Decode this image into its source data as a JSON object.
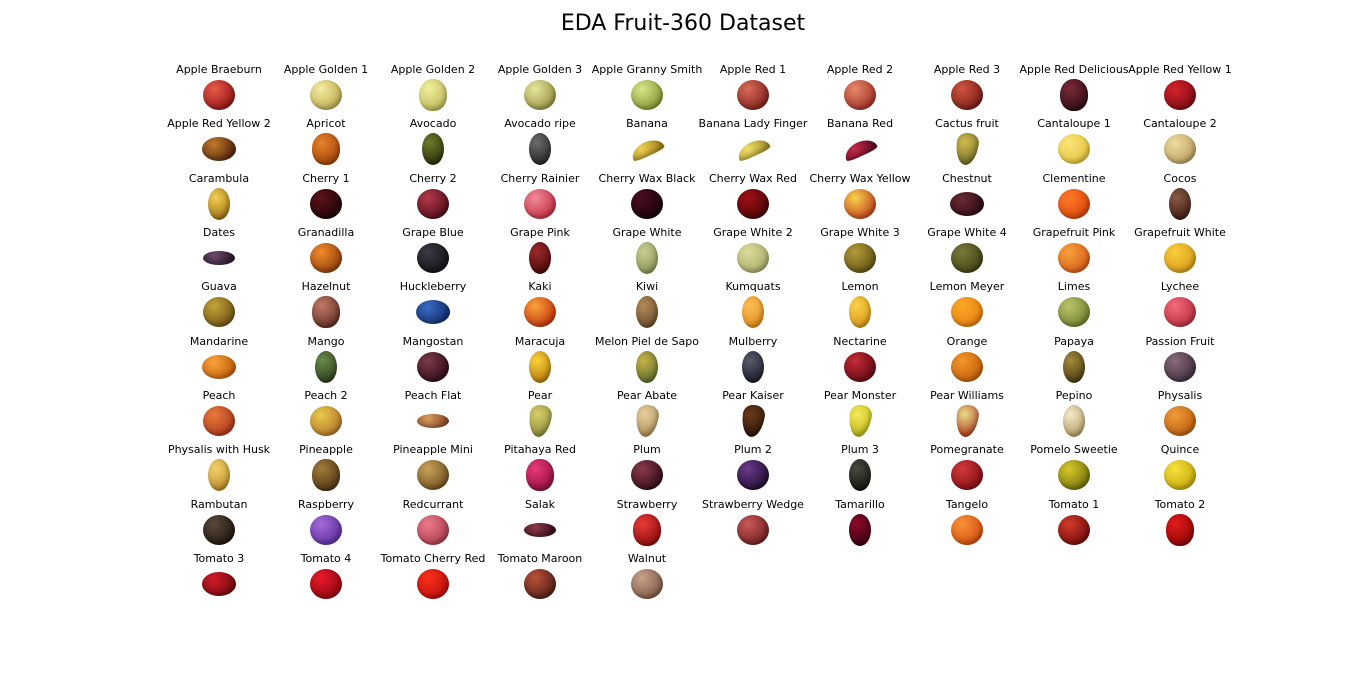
{
  "title": "EDA Fruit-360 Dataset",
  "fruits": [
    {
      "name": "Apple Braeburn",
      "colors": [
        "#e85a4a",
        "#8a1010"
      ],
      "shape": "round"
    },
    {
      "name": "Apple Golden 1",
      "colors": [
        "#f3eca0",
        "#b9a44c"
      ],
      "shape": "round"
    },
    {
      "name": "Apple Golden 2",
      "colors": [
        "#f1ef9a",
        "#b8b557"
      ],
      "shape": "tall"
    },
    {
      "name": "Apple Golden 3",
      "colors": [
        "#e7e59a",
        "#8f8e3c"
      ],
      "shape": "round"
    },
    {
      "name": "Apple Granny Smith",
      "colors": [
        "#d8e58a",
        "#7c8f2a"
      ],
      "shape": "round"
    },
    {
      "name": "Apple Red 1",
      "colors": [
        "#d96a58",
        "#7a1c18"
      ],
      "shape": "round"
    },
    {
      "name": "Apple Red 2",
      "colors": [
        "#e4886b",
        "#9c2a20"
      ],
      "shape": "round"
    },
    {
      "name": "Apple Red 3",
      "colors": [
        "#d25540",
        "#6e1713"
      ],
      "shape": "round"
    },
    {
      "name": "Apple Red Delicious",
      "colors": [
        "#7a2a36",
        "#2a0c14"
      ],
      "shape": "tall"
    },
    {
      "name": "Apple Red Yellow 1",
      "colors": [
        "#d4222a",
        "#760b10"
      ],
      "shape": "round"
    },
    {
      "name": "Apple Red Yellow 2",
      "colors": [
        "#c07a2a",
        "#4d1e0a"
      ],
      "shape": "wide"
    },
    {
      "name": "Apricot",
      "colors": [
        "#e6822a",
        "#9c3f08"
      ],
      "shape": "tall"
    },
    {
      "name": "Avocado",
      "colors": [
        "#6f7a2a",
        "#2b2e0a"
      ],
      "shape": "oval"
    },
    {
      "name": "Avocado ripe",
      "colors": [
        "#6a6a66",
        "#26262a"
      ],
      "shape": "oval"
    },
    {
      "name": "Banana",
      "colors": [
        "#eed054",
        "#a08214"
      ],
      "shape": "banana"
    },
    {
      "name": "Banana Lady Finger",
      "colors": [
        "#f1df6a",
        "#a6922a"
      ],
      "shape": "banana"
    },
    {
      "name": "Banana Red",
      "colors": [
        "#c42a4a",
        "#5e0a20"
      ],
      "shape": "banana"
    },
    {
      "name": "Cactus fruit",
      "colors": [
        "#d2bb52",
        "#6c6a22"
      ],
      "shape": "pear"
    },
    {
      "name": "Cantaloupe 1",
      "colors": [
        "#fbe67a",
        "#e1bf3a"
      ],
      "shape": "round"
    },
    {
      "name": "Cantaloupe 2",
      "colors": [
        "#efdca0",
        "#b59a5a"
      ],
      "shape": "round"
    },
    {
      "name": "Carambula",
      "colors": [
        "#f2cf52",
        "#9c6e14"
      ],
      "shape": "oval"
    },
    {
      "name": "Cherry 1",
      "colors": [
        "#5a1218",
        "#1a0406"
      ],
      "shape": "round"
    },
    {
      "name": "Cherry 2",
      "colors": [
        "#b2384a",
        "#4a0a16"
      ],
      "shape": "round"
    },
    {
      "name": "Cherry Rainier",
      "colors": [
        "#f08a9a",
        "#c0283c"
      ],
      "shape": "round"
    },
    {
      "name": "Cherry Wax Black",
      "colors": [
        "#4a0c24",
        "#12020a"
      ],
      "shape": "round"
    },
    {
      "name": "Cherry Wax Red",
      "colors": [
        "#a01016",
        "#420406"
      ],
      "shape": "round"
    },
    {
      "name": "Cherry Wax Yellow",
      "colors": [
        "#f6d24a",
        "#c0361a"
      ],
      "shape": "round"
    },
    {
      "name": "Chestnut",
      "colors": [
        "#6a2a34",
        "#2a0a12"
      ],
      "shape": "wide"
    },
    {
      "name": "Clementine",
      "colors": [
        "#ff7a2a",
        "#d64108"
      ],
      "shape": "round"
    },
    {
      "name": "Cocos",
      "colors": [
        "#8a5a44",
        "#3a1c14"
      ],
      "shape": "oval"
    },
    {
      "name": "Dates",
      "colors": [
        "#6a4a6a",
        "#2a1a2a"
      ],
      "shape": "flat"
    },
    {
      "name": "Granadilla",
      "colors": [
        "#f08a2a",
        "#8a3a0a"
      ],
      "shape": "round"
    },
    {
      "name": "Grape Blue",
      "colors": [
        "#3a3a42",
        "#0e0e14"
      ],
      "shape": "round"
    },
    {
      "name": "Grape Pink",
      "colors": [
        "#9a2a2a",
        "#4a0808"
      ],
      "shape": "oval"
    },
    {
      "name": "Grape White",
      "colors": [
        "#c9cc92",
        "#8a9456"
      ],
      "shape": "oval"
    },
    {
      "name": "Grape White 2",
      "colors": [
        "#dcdc9c",
        "#a6a664"
      ],
      "shape": "round"
    },
    {
      "name": "Grape White 3",
      "colors": [
        "#b29a3a",
        "#5c4e12"
      ],
      "shape": "round"
    },
    {
      "name": "Grape White 4",
      "colors": [
        "#7a7a3a",
        "#3c3c14"
      ],
      "shape": "round"
    },
    {
      "name": "Grapefruit Pink",
      "colors": [
        "#f6a23a",
        "#d8561a"
      ],
      "shape": "round"
    },
    {
      "name": "Grapefruit White",
      "colors": [
        "#f8ce3a",
        "#d6961a"
      ],
      "shape": "round"
    },
    {
      "name": "Guava",
      "colors": [
        "#c4a23a",
        "#6a4e12"
      ],
      "shape": "round"
    },
    {
      "name": "Hazelnut",
      "colors": [
        "#c27a66",
        "#5a2a22"
      ],
      "shape": "tall"
    },
    {
      "name": "Huckleberry",
      "colors": [
        "#3a6ac0",
        "#0e2a6a"
      ],
      "shape": "wide"
    },
    {
      "name": "Kaki",
      "colors": [
        "#f8a23a",
        "#c02a0a"
      ],
      "shape": "round"
    },
    {
      "name": "Kiwi",
      "colors": [
        "#b08a56",
        "#6a4a2a"
      ],
      "shape": "oval"
    },
    {
      "name": "Kumquats",
      "colors": [
        "#fbbe5a",
        "#e08a1a"
      ],
      "shape": "oval"
    },
    {
      "name": "Lemon",
      "colors": [
        "#fbd04a",
        "#d8961a"
      ],
      "shape": "oval"
    },
    {
      "name": "Lemon Meyer",
      "colors": [
        "#fba82a",
        "#e57a0a"
      ],
      "shape": "round"
    },
    {
      "name": "Limes",
      "colors": [
        "#bcc46a",
        "#6a7a2a"
      ],
      "shape": "round"
    },
    {
      "name": "Lychee",
      "colors": [
        "#f46a7a",
        "#b42a3a"
      ],
      "shape": "round"
    },
    {
      "name": "Mandarine",
      "colors": [
        "#f8a23a",
        "#c05a0a"
      ],
      "shape": "wide"
    },
    {
      "name": "Mango",
      "colors": [
        "#6a8a4a",
        "#2a3e1a"
      ],
      "shape": "oval"
    },
    {
      "name": "Mangostan",
      "colors": [
        "#7a3a4a",
        "#2a0a14"
      ],
      "shape": "round"
    },
    {
      "name": "Maracuja",
      "colors": [
        "#f8d23a",
        "#b8780a"
      ],
      "shape": "oval"
    },
    {
      "name": "Melon Piel de Sapo",
      "colors": [
        "#c6b24a",
        "#5a6a2a"
      ],
      "shape": "oval"
    },
    {
      "name": "Mulberry",
      "colors": [
        "#5a5a6a",
        "#1a1a2a"
      ],
      "shape": "oval"
    },
    {
      "name": "Nectarine",
      "colors": [
        "#c42a36",
        "#5a0812"
      ],
      "shape": "round"
    },
    {
      "name": "Orange",
      "colors": [
        "#f2962a",
        "#c05a08"
      ],
      "shape": "round"
    },
    {
      "name": "Papaya",
      "colors": [
        "#a28a3a",
        "#4a3a12"
      ],
      "shape": "oval"
    },
    {
      "name": "Passion Fruit",
      "colors": [
        "#8a6a7a",
        "#3a2a3a"
      ],
      "shape": "round"
    },
    {
      "name": "Peach",
      "colors": [
        "#e67a3a",
        "#a8321a"
      ],
      "shape": "round"
    },
    {
      "name": "Peach 2",
      "colors": [
        "#e8ca4a",
        "#b0702a"
      ],
      "shape": "round"
    },
    {
      "name": "Peach Flat",
      "colors": [
        "#d69a5a",
        "#8a4a2a"
      ],
      "shape": "flat"
    },
    {
      "name": "Pear",
      "colors": [
        "#d6cc6a",
        "#8a8a3a"
      ],
      "shape": "pear"
    },
    {
      "name": "Pear Abate",
      "colors": [
        "#e8d0a0",
        "#a88a52"
      ],
      "shape": "pear"
    },
    {
      "name": "Pear Kaiser",
      "colors": [
        "#6a3a1a",
        "#2a1408"
      ],
      "shape": "pear"
    },
    {
      "name": "Pear Monster",
      "colors": [
        "#f6ea5a",
        "#b8b41a"
      ],
      "shape": "pear"
    },
    {
      "name": "Pear Williams",
      "colors": [
        "#e8da8a",
        "#b0381a"
      ],
      "shape": "pear"
    },
    {
      "name": "Pepino",
      "colors": [
        "#f2e8c8",
        "#b29a62"
      ],
      "shape": "oval"
    },
    {
      "name": "Physalis",
      "colors": [
        "#f09a3a",
        "#b85a0a"
      ],
      "shape": "round"
    },
    {
      "name": "Physalis with Husk",
      "colors": [
        "#f2d26a",
        "#b88a2a"
      ],
      "shape": "oval"
    },
    {
      "name": "Pineapple",
      "colors": [
        "#a27a3a",
        "#4a3212"
      ],
      "shape": "tall"
    },
    {
      "name": "Pineapple Mini",
      "colors": [
        "#c8a25a",
        "#6a4a1a"
      ],
      "shape": "round"
    },
    {
      "name": "Pitahaya Red",
      "colors": [
        "#e83a7a",
        "#8a0a3a"
      ],
      "shape": "tall"
    },
    {
      "name": "Plum",
      "colors": [
        "#8a3a4a",
        "#2a0a14"
      ],
      "shape": "round"
    },
    {
      "name": "Plum 2",
      "colors": [
        "#6a3a8a",
        "#1a0a2a"
      ],
      "shape": "round"
    },
    {
      "name": "Plum 3",
      "colors": [
        "#4a4a42",
        "#12120e"
      ],
      "shape": "oval"
    },
    {
      "name": "Pomegranate",
      "colors": [
        "#d23a3a",
        "#7a0a12"
      ],
      "shape": "round"
    },
    {
      "name": "Pomelo Sweetie",
      "colors": [
        "#d8c82a",
        "#6a6a0a"
      ],
      "shape": "round"
    },
    {
      "name": "Quince",
      "colors": [
        "#f8e23a",
        "#c0a20a"
      ],
      "shape": "round"
    },
    {
      "name": "Rambutan",
      "colors": [
        "#5a4a3a",
        "#1a120a"
      ],
      "shape": "round"
    },
    {
      "name": "Raspberry",
      "colors": [
        "#a26ad6",
        "#5a2a9a"
      ],
      "shape": "round"
    },
    {
      "name": "Redcurrant",
      "colors": [
        "#e87a8a",
        "#a83a4a"
      ],
      "shape": "round"
    },
    {
      "name": "Salak",
      "colors": [
        "#8a3a4a",
        "#3a0a1a"
      ],
      "shape": "flat"
    },
    {
      "name": "Strawberry",
      "colors": [
        "#e83a3a",
        "#8a0a0a"
      ],
      "shape": "tall"
    },
    {
      "name": "Strawberry Wedge",
      "colors": [
        "#c85a5a",
        "#6a1a1a"
      ],
      "shape": "round"
    },
    {
      "name": "Tamarillo",
      "colors": [
        "#8a0a2a",
        "#3a0010"
      ],
      "shape": "oval"
    },
    {
      "name": "Tangelo",
      "colors": [
        "#f8923a",
        "#d04a0a"
      ],
      "shape": "round"
    },
    {
      "name": "Tomato 1",
      "colors": [
        "#d23a2a",
        "#6a0a08"
      ],
      "shape": "round"
    },
    {
      "name": "Tomato 2",
      "colors": [
        "#e21a1a",
        "#8a0404"
      ],
      "shape": "tall"
    },
    {
      "name": "Tomato 3",
      "colors": [
        "#d21a2a",
        "#6a0a0a"
      ],
      "shape": "wide"
    },
    {
      "name": "Tomato 4",
      "colors": [
        "#e81a2a",
        "#8a0410"
      ],
      "shape": "round"
    },
    {
      "name": "Tomato Cherry Red",
      "colors": [
        "#f8321a",
        "#b80a0a"
      ],
      "shape": "round"
    },
    {
      "name": "Tomato Maroon",
      "colors": [
        "#b8523a",
        "#4a1a12"
      ],
      "shape": "round"
    },
    {
      "name": "Walnut",
      "colors": [
        "#c8a28a",
        "#7a5242"
      ],
      "shape": "round"
    }
  ]
}
